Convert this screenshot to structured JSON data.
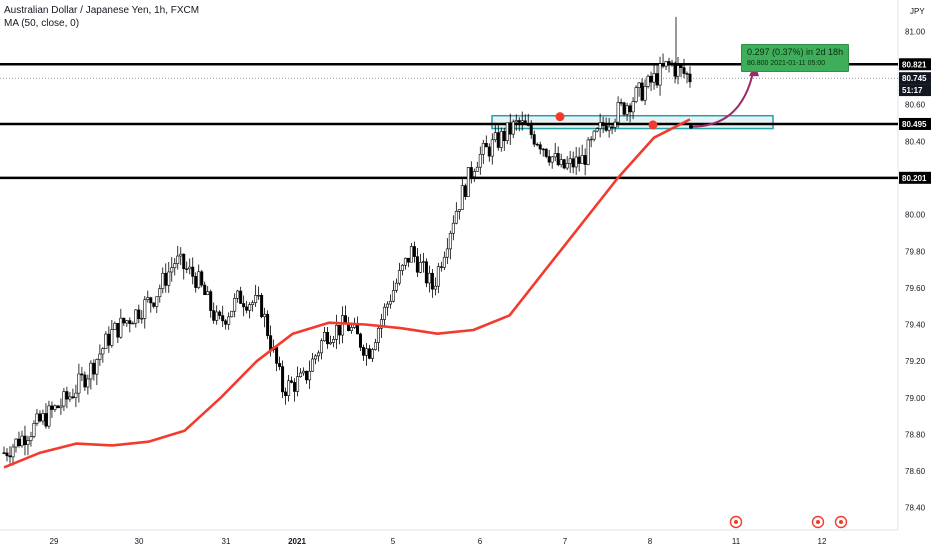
{
  "legend": {
    "title": "Australian Dollar / Japanese Yen, 1h, FXCM",
    "indicator": "MA (50, close, 0)"
  },
  "axis": {
    "currency": "JPY",
    "ymin": 78.3,
    "ymax": 81.15,
    "y_ticks": [
      78.4,
      78.6,
      78.8,
      79.0,
      79.2,
      79.4,
      79.6,
      79.8,
      80.0,
      80.4,
      80.6,
      81.0
    ],
    "x_labels": [
      "29",
      "30",
      "31",
      "2021",
      "5",
      "6",
      "7",
      "8",
      "11",
      "12"
    ]
  },
  "levels": [
    {
      "name": "resistance",
      "value": 80.821,
      "label": "80.821",
      "color": "#000000"
    },
    {
      "name": "support-mid",
      "value": 80.495,
      "label": "80.495",
      "color": "#000000"
    },
    {
      "name": "support-low",
      "value": 80.201,
      "label": "80.201",
      "color": "#000000"
    }
  ],
  "price_tags": [
    {
      "name": "last-price",
      "value": 80.745,
      "label": "80.745"
    },
    {
      "name": "countdown",
      "value": 80.68,
      "label": "51:17"
    }
  ],
  "zone": {
    "from": 80.47,
    "to": 80.54,
    "color": "#26a0a6"
  },
  "callout": {
    "main": "0.297 (0.37%) in 2d 18h",
    "sub": "80.800   2021-01-11  05:00",
    "color": "#3fae5a"
  },
  "chart_data": {
    "type": "candlestick",
    "title": "Australian Dollar / Japanese Yen, 1h, FXCM",
    "ylim": [
      78.3,
      81.15
    ],
    "key_closes": [
      78.7,
      78.8,
      78.9,
      79.0,
      79.15,
      79.35,
      79.45,
      79.55,
      79.75,
      79.65,
      79.4,
      79.55,
      79.5,
      79.05,
      79.1,
      79.35,
      79.4,
      79.25,
      79.55,
      79.8,
      79.6,
      80.0,
      80.3,
      80.4,
      80.5,
      80.4,
      80.25,
      80.3,
      80.5,
      80.6,
      80.7,
      80.82,
      80.75
    ],
    "ma_series": {
      "name": "MA (50, close, 0)",
      "color": "#f23b2d",
      "values": [
        78.62,
        78.7,
        78.75,
        78.74,
        78.76,
        78.82,
        79.0,
        79.2,
        79.35,
        79.41,
        79.4,
        79.38,
        79.35,
        79.37,
        79.45,
        79.7,
        79.95,
        80.2,
        80.42,
        80.52
      ]
    }
  }
}
